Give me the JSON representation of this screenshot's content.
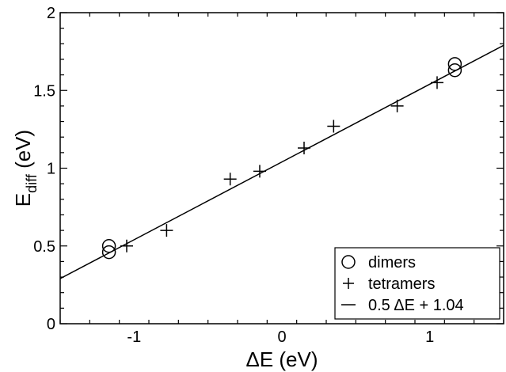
{
  "chart_data": {
    "type": "scatter",
    "xlabel": "ΔE (eV)",
    "ylabel_main": "E",
    "ylabel_sub": "diff",
    "ylabel_unit": " (eV)",
    "xlim": [
      -1.5,
      1.5
    ],
    "ylim": [
      0,
      2
    ],
    "x_ticks": [
      -1,
      0,
      1
    ],
    "x_tick_labels": [
      "-1",
      "0",
      "1"
    ],
    "y_ticks": [
      0,
      0.5,
      1,
      1.5,
      2
    ],
    "y_tick_labels": [
      "0",
      "0.5",
      "1",
      "1.5",
      "2"
    ],
    "grid": false,
    "legend_position": "bottom-right",
    "series": [
      {
        "name": "dimers",
        "marker": "circle",
        "points": [
          {
            "x": -1.17,
            "y": 0.5
          },
          {
            "x": -1.17,
            "y": 0.46
          },
          {
            "x": 1.17,
            "y": 1.67
          },
          {
            "x": 1.17,
            "y": 1.63
          }
        ]
      },
      {
        "name": "tetramers",
        "marker": "plus",
        "points": [
          {
            "x": -1.05,
            "y": 0.5
          },
          {
            "x": -0.78,
            "y": 0.6
          },
          {
            "x": -0.35,
            "y": 0.93
          },
          {
            "x": -0.15,
            "y": 0.98
          },
          {
            "x": 0.15,
            "y": 1.13
          },
          {
            "x": 0.35,
            "y": 1.27
          },
          {
            "x": 0.78,
            "y": 1.4
          },
          {
            "x": 1.05,
            "y": 1.55
          }
        ]
      },
      {
        "name": "0.5 ΔE + 1.04",
        "marker": "line",
        "slope": 0.5,
        "intercept": 1.04
      }
    ]
  }
}
